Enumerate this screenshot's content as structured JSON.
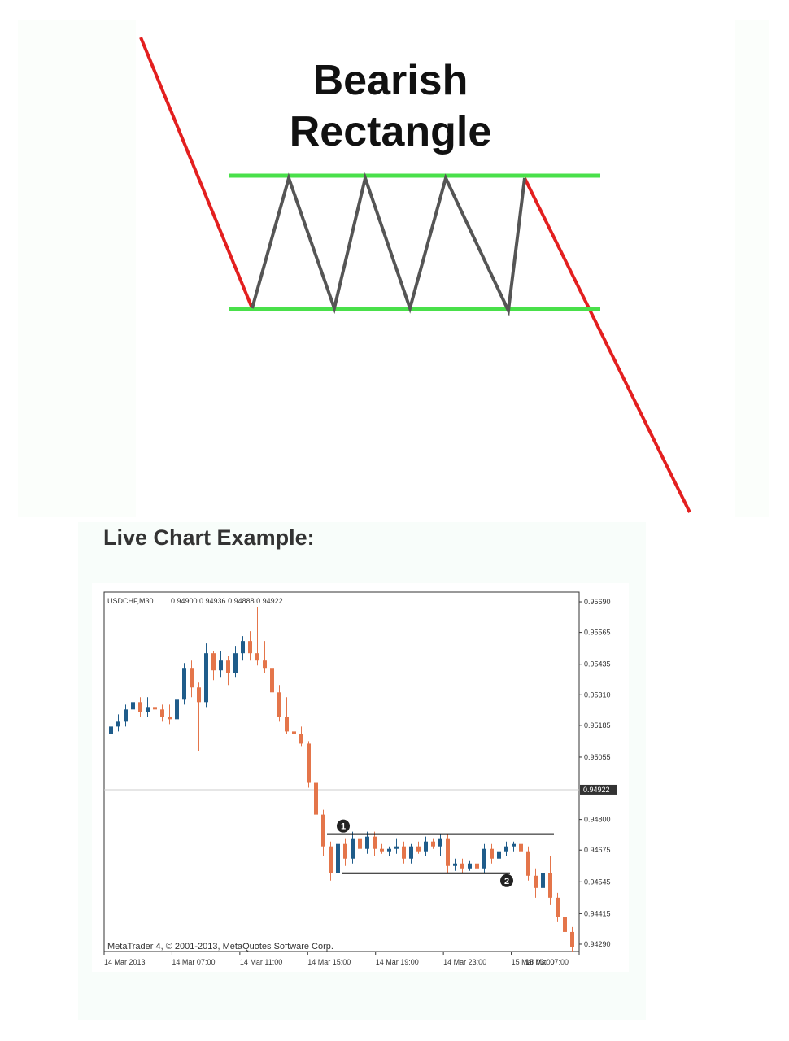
{
  "diagram": {
    "title_line1": "Bearish",
    "title_line2": "Rectangle",
    "colors": {
      "trend": "#e31f1f",
      "boundary": "#49e04a",
      "zigzag": "#555555"
    }
  },
  "section_heading": "Live Chart Example:",
  "chart_data": {
    "type": "candlestick",
    "symbol_label": "USDCHF,M30",
    "ohlc_label": "0.94900 0.94936 0.94888 0.94922",
    "footer": "MetaTrader 4, © 2001-2013, MetaQuotes Software Corp.",
    "y_ticks": [
      "0.95690",
      "0.95565",
      "0.95435",
      "0.95310",
      "0.95185",
      "0.95055",
      "0.94800",
      "0.94675",
      "0.94545",
      "0.94415",
      "0.94290"
    ],
    "current_price": "0.94922",
    "ylim": [
      0.9426,
      0.9573
    ],
    "x_ticks": [
      "14 Mar 2013",
      "14 Mar 07:00",
      "14 Mar 11:00",
      "14 Mar 15:00",
      "14 Mar 19:00",
      "14 Mar 23:00",
      "15 Mar 03:00",
      "15 Mar 07:00"
    ],
    "colors": {
      "bull": "#1f5c8a",
      "bear": "#e4754a",
      "grid": "#cccccc",
      "text": "#333333"
    },
    "support_resistance": [
      {
        "label": "1",
        "level": 0.9474
      },
      {
        "label": "2",
        "level": 0.9458
      }
    ],
    "candles": [
      [
        0.9515,
        0.952,
        0.9513,
        0.9518
      ],
      [
        0.9518,
        0.9523,
        0.9516,
        0.952
      ],
      [
        0.952,
        0.9527,
        0.9518,
        0.9525
      ],
      [
        0.9525,
        0.953,
        0.9522,
        0.9528
      ],
      [
        0.9528,
        0.953,
        0.9522,
        0.9524
      ],
      [
        0.9524,
        0.953,
        0.9522,
        0.9526
      ],
      [
        0.9526,
        0.9529,
        0.9523,
        0.9525
      ],
      [
        0.9525,
        0.9527,
        0.952,
        0.9522
      ],
      [
        0.9522,
        0.9527,
        0.9519,
        0.9521
      ],
      [
        0.9521,
        0.9531,
        0.9519,
        0.9529
      ],
      [
        0.9529,
        0.9544,
        0.9527,
        0.9542
      ],
      [
        0.9542,
        0.9545,
        0.953,
        0.9534
      ],
      [
        0.9534,
        0.9536,
        0.9508,
        0.9528
      ],
      [
        0.9528,
        0.9552,
        0.9526,
        0.9548
      ],
      [
        0.9548,
        0.9549,
        0.9537,
        0.9541
      ],
      [
        0.9541,
        0.9549,
        0.9538,
        0.9545
      ],
      [
        0.9545,
        0.9547,
        0.9535,
        0.954
      ],
      [
        0.954,
        0.9551,
        0.9538,
        0.9548
      ],
      [
        0.9548,
        0.9555,
        0.9545,
        0.9553
      ],
      [
        0.9553,
        0.9557,
        0.9545,
        0.9548
      ],
      [
        0.9548,
        0.9567,
        0.9543,
        0.9545
      ],
      [
        0.9545,
        0.9553,
        0.954,
        0.9542
      ],
      [
        0.9542,
        0.9545,
        0.953,
        0.9532
      ],
      [
        0.9532,
        0.9535,
        0.952,
        0.9522
      ],
      [
        0.9522,
        0.953,
        0.9515,
        0.9516
      ],
      [
        0.9516,
        0.9517,
        0.951,
        0.9515
      ],
      [
        0.9515,
        0.9518,
        0.951,
        0.9511
      ],
      [
        0.9511,
        0.9512,
        0.9493,
        0.9495
      ],
      [
        0.9495,
        0.9505,
        0.948,
        0.9482
      ],
      [
        0.9482,
        0.9484,
        0.9465,
        0.9469
      ],
      [
        0.9469,
        0.9471,
        0.9455,
        0.9458
      ],
      [
        0.9458,
        0.9472,
        0.9456,
        0.947
      ],
      [
        0.947,
        0.9472,
        0.9461,
        0.9464
      ],
      [
        0.9464,
        0.9475,
        0.9462,
        0.9472
      ],
      [
        0.9472,
        0.9474,
        0.9465,
        0.9468
      ],
      [
        0.9468,
        0.9475,
        0.9466,
        0.9473
      ],
      [
        0.9473,
        0.9475,
        0.9465,
        0.9468
      ],
      [
        0.9468,
        0.947,
        0.9466,
        0.9467
      ],
      [
        0.9467,
        0.9469,
        0.9465,
        0.9468
      ],
      [
        0.9468,
        0.9472,
        0.9466,
        0.9469
      ],
      [
        0.9469,
        0.9471,
        0.9462,
        0.9464
      ],
      [
        0.9464,
        0.947,
        0.9462,
        0.9469
      ],
      [
        0.9469,
        0.9471,
        0.9466,
        0.9467
      ],
      [
        0.9467,
        0.9473,
        0.9465,
        0.9471
      ],
      [
        0.9471,
        0.9472,
        0.9468,
        0.9469
      ],
      [
        0.9469,
        0.9474,
        0.9465,
        0.9472
      ],
      [
        0.9472,
        0.9474,
        0.9458,
        0.9461
      ],
      [
        0.9461,
        0.9464,
        0.9459,
        0.9462
      ],
      [
        0.9462,
        0.9464,
        0.9458,
        0.946
      ],
      [
        0.946,
        0.9463,
        0.9459,
        0.9462
      ],
      [
        0.9462,
        0.9464,
        0.9459,
        0.946
      ],
      [
        0.946,
        0.947,
        0.9458,
        0.9468
      ],
      [
        0.9468,
        0.947,
        0.9462,
        0.9464
      ],
      [
        0.9464,
        0.9468,
        0.9462,
        0.9467
      ],
      [
        0.9467,
        0.9471,
        0.9465,
        0.9469
      ],
      [
        0.9469,
        0.9471,
        0.9467,
        0.947
      ],
      [
        0.947,
        0.9472,
        0.9466,
        0.9467
      ],
      [
        0.9467,
        0.9469,
        0.9455,
        0.9457
      ],
      [
        0.9457,
        0.946,
        0.9448,
        0.9452
      ],
      [
        0.9452,
        0.946,
        0.945,
        0.9458
      ],
      [
        0.9458,
        0.9465,
        0.9445,
        0.9448
      ],
      [
        0.9448,
        0.945,
        0.9438,
        0.944
      ],
      [
        0.944,
        0.9442,
        0.9432,
        0.9434
      ],
      [
        0.9434,
        0.9436,
        0.9426,
        0.9428
      ]
    ]
  }
}
